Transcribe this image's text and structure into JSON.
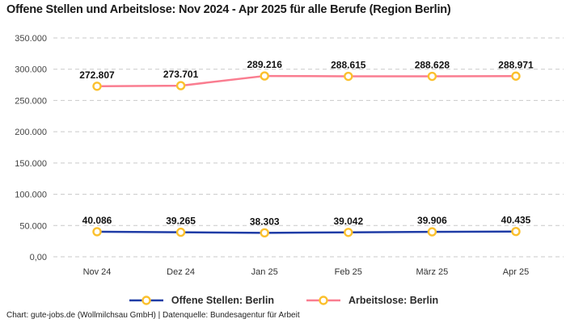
{
  "header": {
    "title": "Offene Stellen und Arbeitslose: Nov 2024 - Apr 2025 für alle Berufe (Region Berlin)"
  },
  "chart_data": {
    "type": "line",
    "title": "Offene Stellen und Arbeitslose: Nov 2024 - Apr 2025 für alle Berufe (Region Berlin)",
    "categories": [
      "Nov 24",
      "Dez 24",
      "Jan 25",
      "Feb 25",
      "März 25",
      "Apr 25"
    ],
    "series": [
      {
        "name": "Offene Stellen: Berlin",
        "color": "#1f3ca6",
        "values": [
          40086,
          39265,
          38303,
          39042,
          39906,
          40435
        ],
        "labels": [
          "40.086",
          "39.265",
          "38.303",
          "39.042",
          "39.906",
          "40.435"
        ]
      },
      {
        "name": "Arbeitslose: Berlin",
        "color": "#fa7d90",
        "values": [
          272807,
          273701,
          289216,
          288615,
          288628,
          288971
        ],
        "labels": [
          "272.807",
          "273.701",
          "289.216",
          "288.615",
          "288.628",
          "288.971"
        ]
      }
    ],
    "yticks": [
      {
        "value": 0,
        "label": "0,00"
      },
      {
        "value": 50000,
        "label": "50.000"
      },
      {
        "value": 100000,
        "label": "100.000"
      },
      {
        "value": 150000,
        "label": "150.000"
      },
      {
        "value": 200000,
        "label": "200.000"
      },
      {
        "value": 250000,
        "label": "250.000"
      },
      {
        "value": 300000,
        "label": "300.000"
      },
      {
        "value": 350000,
        "label": "350.000"
      }
    ],
    "ylim": [
      0,
      350000
    ],
    "xlabel": "",
    "ylabel": "",
    "grid": "horizontal-dashed",
    "legend_position": "bottom",
    "marker_color": "#fbc02d"
  },
  "footer": {
    "credit": "Chart: gute-jobs.de (Wollmilchsau GmbH) | Datenquelle: Bundesagentur für Arbeit"
  }
}
